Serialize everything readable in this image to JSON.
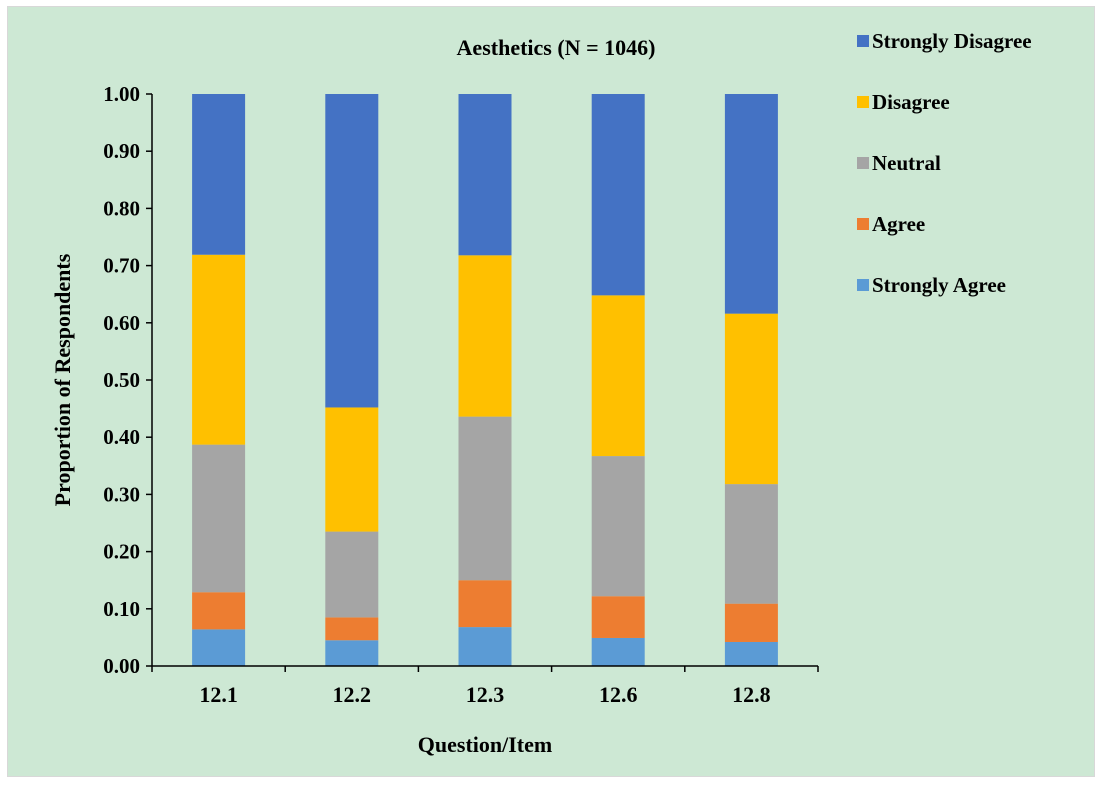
{
  "chart_data": {
    "type": "bar",
    "stacked": true,
    "orientation": "vertical",
    "title": "Aesthetics (N = 1046)",
    "xlabel": "Question/Item",
    "ylabel": "Proportion of Respondents",
    "ylim": [
      0,
      1
    ],
    "yticks": [
      "0.00",
      "0.10",
      "0.20",
      "0.30",
      "0.40",
      "0.50",
      "0.60",
      "0.70",
      "0.80",
      "0.90",
      "1.00"
    ],
    "grid": false,
    "legend_position": "top-right",
    "categories": [
      "12.1",
      "12.2",
      "12.3",
      "12.6",
      "12.8"
    ],
    "series": [
      {
        "name": "Strongly Agree",
        "color": "#5b9bd5",
        "values": [
          0.064,
          0.045,
          0.068,
          0.049,
          0.042
        ]
      },
      {
        "name": "Agree",
        "color": "#ed7d31",
        "values": [
          0.065,
          0.04,
          0.082,
          0.073,
          0.067
        ]
      },
      {
        "name": "Neutral",
        "color": "#a5a5a5",
        "values": [
          0.258,
          0.15,
          0.286,
          0.245,
          0.209
        ]
      },
      {
        "name": "Disagree",
        "color": "#ffc000",
        "values": [
          0.332,
          0.217,
          0.282,
          0.281,
          0.298
        ]
      },
      {
        "name": "Strongly Disagree",
        "color": "#4472c4",
        "values": [
          0.281,
          0.548,
          0.282,
          0.352,
          0.384
        ]
      }
    ]
  }
}
